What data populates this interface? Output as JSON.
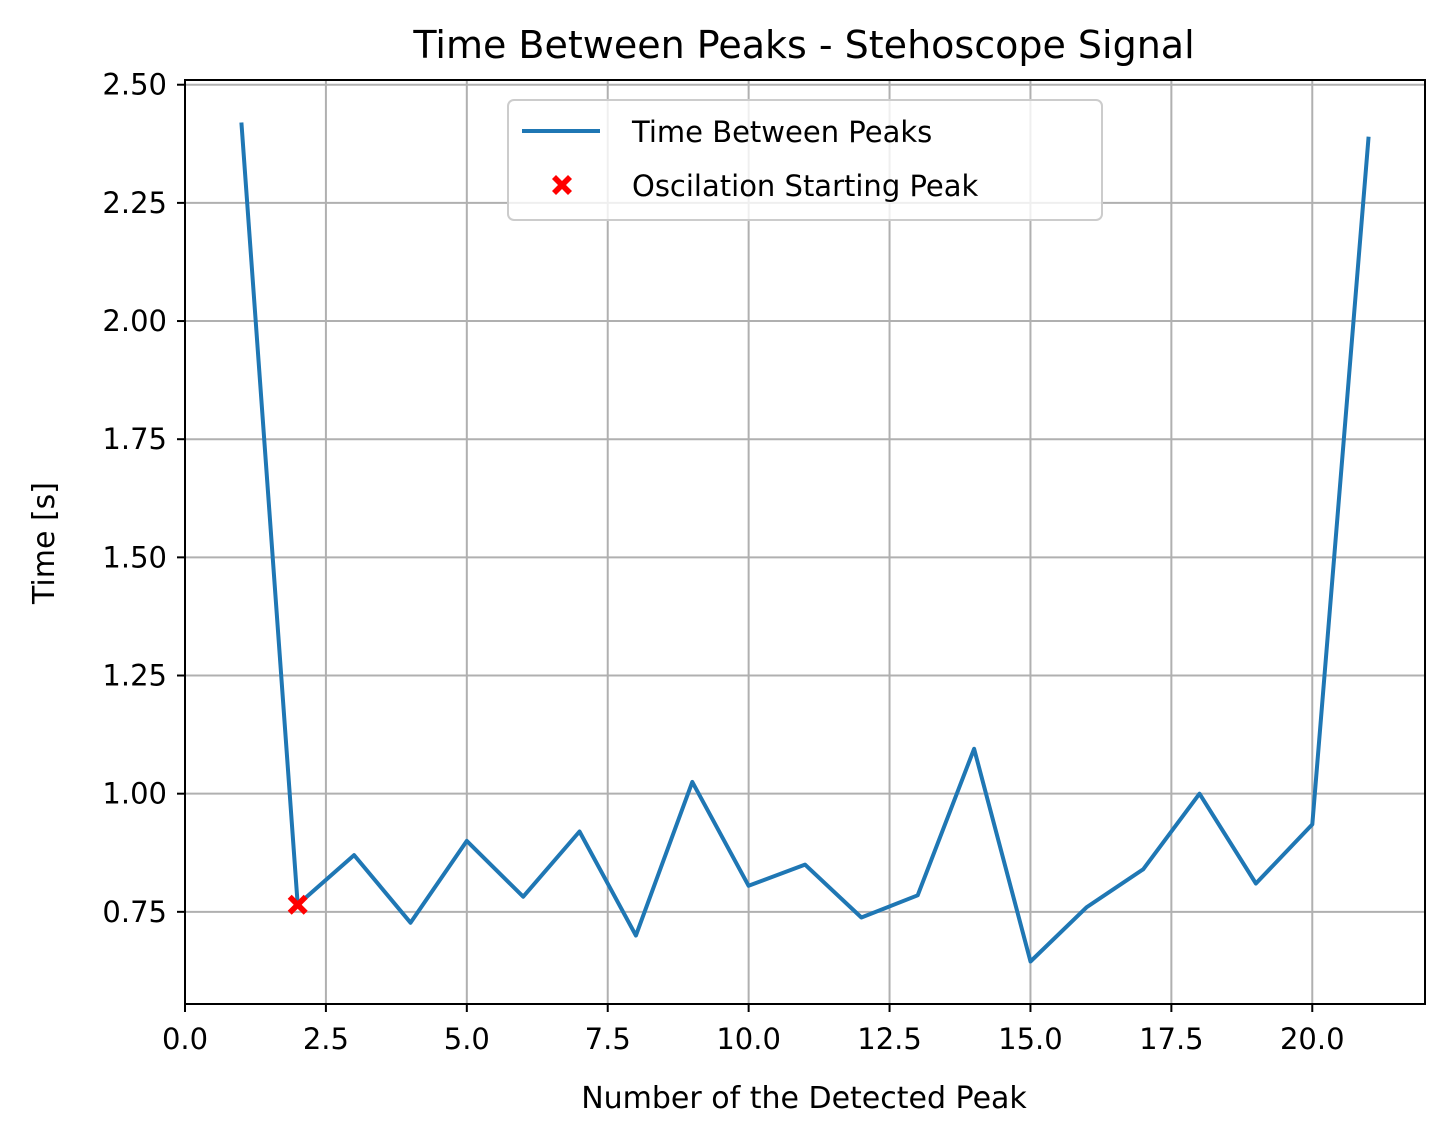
{
  "chart_data": {
    "type": "line",
    "title": "Time Between Peaks - Stehoscope Signal",
    "xlabel": "Number of the Detected Peak",
    "ylabel": "Time [s]",
    "xlim": [
      0,
      22
    ],
    "ylim": [
      0.555,
      2.51
    ],
    "xticks": [
      0.0,
      2.5,
      5.0,
      7.5,
      10.0,
      12.5,
      15.0,
      17.5,
      20.0
    ],
    "xtick_labels": [
      "0.0",
      "2.5",
      "5.0",
      "7.5",
      "10.0",
      "12.5",
      "15.0",
      "17.5",
      "20.0"
    ],
    "yticks": [
      0.75,
      1.0,
      1.25,
      1.5,
      1.75,
      2.0,
      2.25,
      2.5
    ],
    "ytick_labels": [
      "0.75",
      "1.00",
      "1.25",
      "1.50",
      "1.75",
      "2.00",
      "2.25",
      "2.50"
    ],
    "grid": true,
    "legend_position": "upper-center",
    "series": [
      {
        "name": "Time Between Peaks",
        "kind": "line",
        "color": "#1f77b4",
        "x": [
          1,
          2,
          3,
          4,
          5,
          6,
          7,
          8,
          9,
          10,
          11,
          12,
          13,
          14,
          15,
          16,
          17,
          18,
          19,
          20,
          21
        ],
        "y": [
          2.42,
          0.765,
          0.87,
          0.727,
          0.9,
          0.782,
          0.92,
          0.7,
          1.025,
          0.805,
          0.85,
          0.738,
          0.785,
          1.095,
          0.645,
          0.76,
          0.84,
          1.0,
          0.81,
          0.935,
          2.39
        ]
      },
      {
        "name": "Oscilation Starting Peak",
        "kind": "marker",
        "marker": "X",
        "color": "#ff0000",
        "x": [
          2
        ],
        "y": [
          0.765
        ]
      }
    ]
  }
}
